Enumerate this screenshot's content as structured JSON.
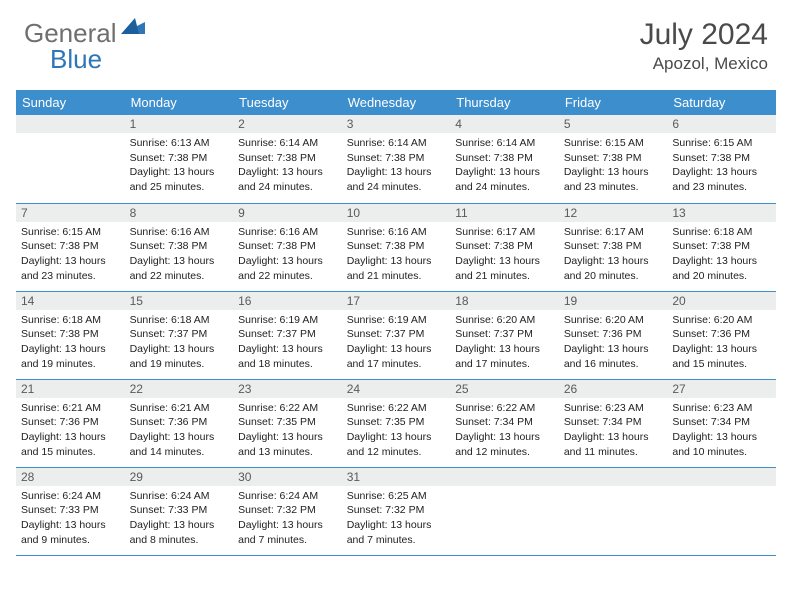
{
  "brand": {
    "word1": "General",
    "word2": "Blue"
  },
  "title": {
    "month": "July 2024",
    "location": "Apozol, Mexico"
  },
  "colors": {
    "header_bg": "#3c8ecd",
    "header_fg": "#ffffff",
    "daynum_bg": "#eceded",
    "border": "#3c8ecd",
    "brand_gray": "#6f6f6f",
    "brand_blue": "#2f76b8"
  },
  "weekdays": [
    "Sunday",
    "Monday",
    "Tuesday",
    "Wednesday",
    "Thursday",
    "Friday",
    "Saturday"
  ],
  "weeks": [
    [
      null,
      {
        "n": "1",
        "sr": "Sunrise: 6:13 AM",
        "ss": "Sunset: 7:38 PM",
        "d1": "Daylight: 13 hours",
        "d2": "and 25 minutes."
      },
      {
        "n": "2",
        "sr": "Sunrise: 6:14 AM",
        "ss": "Sunset: 7:38 PM",
        "d1": "Daylight: 13 hours",
        "d2": "and 24 minutes."
      },
      {
        "n": "3",
        "sr": "Sunrise: 6:14 AM",
        "ss": "Sunset: 7:38 PM",
        "d1": "Daylight: 13 hours",
        "d2": "and 24 minutes."
      },
      {
        "n": "4",
        "sr": "Sunrise: 6:14 AM",
        "ss": "Sunset: 7:38 PM",
        "d1": "Daylight: 13 hours",
        "d2": "and 24 minutes."
      },
      {
        "n": "5",
        "sr": "Sunrise: 6:15 AM",
        "ss": "Sunset: 7:38 PM",
        "d1": "Daylight: 13 hours",
        "d2": "and 23 minutes."
      },
      {
        "n": "6",
        "sr": "Sunrise: 6:15 AM",
        "ss": "Sunset: 7:38 PM",
        "d1": "Daylight: 13 hours",
        "d2": "and 23 minutes."
      }
    ],
    [
      {
        "n": "7",
        "sr": "Sunrise: 6:15 AM",
        "ss": "Sunset: 7:38 PM",
        "d1": "Daylight: 13 hours",
        "d2": "and 23 minutes."
      },
      {
        "n": "8",
        "sr": "Sunrise: 6:16 AM",
        "ss": "Sunset: 7:38 PM",
        "d1": "Daylight: 13 hours",
        "d2": "and 22 minutes."
      },
      {
        "n": "9",
        "sr": "Sunrise: 6:16 AM",
        "ss": "Sunset: 7:38 PM",
        "d1": "Daylight: 13 hours",
        "d2": "and 22 minutes."
      },
      {
        "n": "10",
        "sr": "Sunrise: 6:16 AM",
        "ss": "Sunset: 7:38 PM",
        "d1": "Daylight: 13 hours",
        "d2": "and 21 minutes."
      },
      {
        "n": "11",
        "sr": "Sunrise: 6:17 AM",
        "ss": "Sunset: 7:38 PM",
        "d1": "Daylight: 13 hours",
        "d2": "and 21 minutes."
      },
      {
        "n": "12",
        "sr": "Sunrise: 6:17 AM",
        "ss": "Sunset: 7:38 PM",
        "d1": "Daylight: 13 hours",
        "d2": "and 20 minutes."
      },
      {
        "n": "13",
        "sr": "Sunrise: 6:18 AM",
        "ss": "Sunset: 7:38 PM",
        "d1": "Daylight: 13 hours",
        "d2": "and 20 minutes."
      }
    ],
    [
      {
        "n": "14",
        "sr": "Sunrise: 6:18 AM",
        "ss": "Sunset: 7:38 PM",
        "d1": "Daylight: 13 hours",
        "d2": "and 19 minutes."
      },
      {
        "n": "15",
        "sr": "Sunrise: 6:18 AM",
        "ss": "Sunset: 7:37 PM",
        "d1": "Daylight: 13 hours",
        "d2": "and 19 minutes."
      },
      {
        "n": "16",
        "sr": "Sunrise: 6:19 AM",
        "ss": "Sunset: 7:37 PM",
        "d1": "Daylight: 13 hours",
        "d2": "and 18 minutes."
      },
      {
        "n": "17",
        "sr": "Sunrise: 6:19 AM",
        "ss": "Sunset: 7:37 PM",
        "d1": "Daylight: 13 hours",
        "d2": "and 17 minutes."
      },
      {
        "n": "18",
        "sr": "Sunrise: 6:20 AM",
        "ss": "Sunset: 7:37 PM",
        "d1": "Daylight: 13 hours",
        "d2": "and 17 minutes."
      },
      {
        "n": "19",
        "sr": "Sunrise: 6:20 AM",
        "ss": "Sunset: 7:36 PM",
        "d1": "Daylight: 13 hours",
        "d2": "and 16 minutes."
      },
      {
        "n": "20",
        "sr": "Sunrise: 6:20 AM",
        "ss": "Sunset: 7:36 PM",
        "d1": "Daylight: 13 hours",
        "d2": "and 15 minutes."
      }
    ],
    [
      {
        "n": "21",
        "sr": "Sunrise: 6:21 AM",
        "ss": "Sunset: 7:36 PM",
        "d1": "Daylight: 13 hours",
        "d2": "and 15 minutes."
      },
      {
        "n": "22",
        "sr": "Sunrise: 6:21 AM",
        "ss": "Sunset: 7:36 PM",
        "d1": "Daylight: 13 hours",
        "d2": "and 14 minutes."
      },
      {
        "n": "23",
        "sr": "Sunrise: 6:22 AM",
        "ss": "Sunset: 7:35 PM",
        "d1": "Daylight: 13 hours",
        "d2": "and 13 minutes."
      },
      {
        "n": "24",
        "sr": "Sunrise: 6:22 AM",
        "ss": "Sunset: 7:35 PM",
        "d1": "Daylight: 13 hours",
        "d2": "and 12 minutes."
      },
      {
        "n": "25",
        "sr": "Sunrise: 6:22 AM",
        "ss": "Sunset: 7:34 PM",
        "d1": "Daylight: 13 hours",
        "d2": "and 12 minutes."
      },
      {
        "n": "26",
        "sr": "Sunrise: 6:23 AM",
        "ss": "Sunset: 7:34 PM",
        "d1": "Daylight: 13 hours",
        "d2": "and 11 minutes."
      },
      {
        "n": "27",
        "sr": "Sunrise: 6:23 AM",
        "ss": "Sunset: 7:34 PM",
        "d1": "Daylight: 13 hours",
        "d2": "and 10 minutes."
      }
    ],
    [
      {
        "n": "28",
        "sr": "Sunrise: 6:24 AM",
        "ss": "Sunset: 7:33 PM",
        "d1": "Daylight: 13 hours",
        "d2": "and 9 minutes."
      },
      {
        "n": "29",
        "sr": "Sunrise: 6:24 AM",
        "ss": "Sunset: 7:33 PM",
        "d1": "Daylight: 13 hours",
        "d2": "and 8 minutes."
      },
      {
        "n": "30",
        "sr": "Sunrise: 6:24 AM",
        "ss": "Sunset: 7:32 PM",
        "d1": "Daylight: 13 hours",
        "d2": "and 7 minutes."
      },
      {
        "n": "31",
        "sr": "Sunrise: 6:25 AM",
        "ss": "Sunset: 7:32 PM",
        "d1": "Daylight: 13 hours",
        "d2": "and 7 minutes."
      },
      null,
      null,
      null
    ]
  ]
}
